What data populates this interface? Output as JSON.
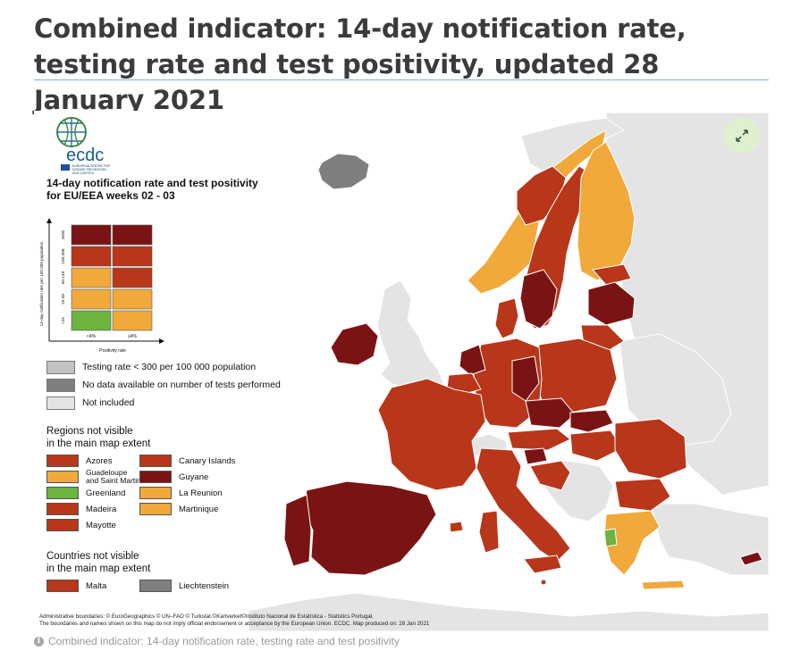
{
  "page": {
    "title": "Combined indicator: 14-day notification rate, testing rate and test positivity, updated 28 January 2021",
    "caption": "Combined indicator: 14-day notification rate, testing rate and test positivity",
    "caption_icon": "info-icon"
  },
  "colors": {
    "dark_red": "#7a1414",
    "red": "#b8361a",
    "orange": "#f0a93a",
    "green": "#6cb33f",
    "grey_low_testing": "#c3c3c3",
    "grey_no_data": "#7f7f7f",
    "not_included": "#e4e4e4",
    "sea": "#ffffff",
    "expand_bg": "#dff0cf"
  },
  "map": {
    "expand_icon": "expand-arrows-icon",
    "logo": {
      "text": "ecdc",
      "subtitle_line1": "EUROPEAN CENTRE FOR",
      "subtitle_line2": "DISEASE PREVENTION",
      "subtitle_line3": "AND CONTROL"
    },
    "legend_title_line1": "14-day notification rate and test positivity",
    "legend_title_line2": "for EU/EEA weeks 02 - 03",
    "matrix": {
      "y_axis_label": "14-day notification rate per 100 000 population",
      "x_axis_label": "Positivity rate",
      "row_labels": [
        "≥500",
        "150-499",
        "50-149",
        "25-49",
        "<25"
      ],
      "column_labels": [
        "<4%",
        "≥4%"
      ],
      "cells": [
        [
          "dark_red",
          "dark_red"
        ],
        [
          "red",
          "red"
        ],
        [
          "orange",
          "red"
        ],
        [
          "orange",
          "orange"
        ],
        [
          "green",
          "orange"
        ]
      ]
    },
    "other_legend": [
      {
        "label": "Testing rate < 300 per 100 000 population",
        "color_key": "grey_low_testing"
      },
      {
        "label": "No data available on number of tests performed",
        "color_key": "grey_no_data"
      },
      {
        "label": "Not included",
        "color_key": "not_included"
      }
    ],
    "regions_heading_line1": "Regions not visible",
    "regions_heading_line2": "in the main map extent",
    "regions": [
      {
        "label": "Azores",
        "color_key": "red"
      },
      {
        "label": "Guadeloupe and Saint Martin",
        "label_line1": "Guadeloupe",
        "label_line2": "and Saint Martin",
        "color_key": "orange"
      },
      {
        "label": "Greenland",
        "color_key": "green"
      },
      {
        "label": "Madeira",
        "color_key": "red"
      },
      {
        "label": "Mayotte",
        "color_key": "red"
      },
      {
        "label": "Canary Islands",
        "color_key": "red"
      },
      {
        "label": "Guyane",
        "color_key": "dark_red"
      },
      {
        "label": "La Reunion",
        "color_key": "orange"
      },
      {
        "label": "Martinique",
        "color_key": "orange"
      }
    ],
    "countries_heading_line1": "Countries not visible",
    "countries_heading_line2": "in the main map extent",
    "countries": [
      {
        "label": "Malta",
        "color_key": "red"
      },
      {
        "label": "Liechtenstein",
        "color_key": "grey_no_data"
      }
    ],
    "attribution_line1": "Administrative boundaries: © EuroGeographics © UN–FAO © Turkstat.©Kartverket©Instituto Nacional de Estatística - Statistics Portugal.",
    "attribution_line2": "The boundaries and names shown on this map do not imply official endorsement or acceptance by the European Union. ECDC. Map produced on: 28 Jan 2021"
  }
}
